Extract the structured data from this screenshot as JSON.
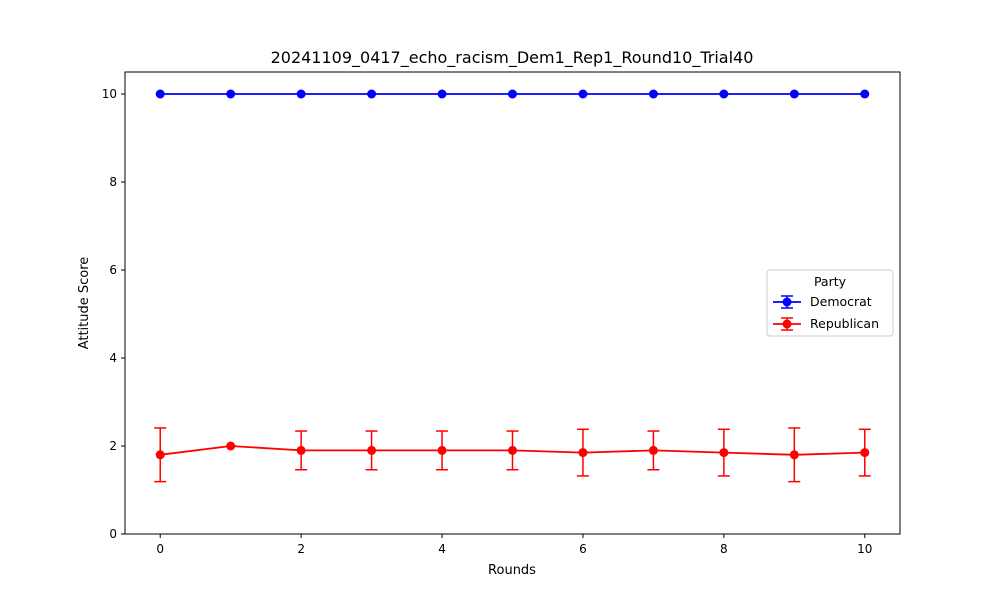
{
  "chart_data": {
    "type": "line",
    "title": "20241109_0417_echo_racism_Dem1_Rep1_Round10_Trial40",
    "xlabel": "Rounds",
    "ylabel": "Attitude Score",
    "x": [
      0,
      1,
      2,
      3,
      4,
      5,
      6,
      7,
      8,
      9,
      10
    ],
    "xlim": [
      -0.5,
      10.5
    ],
    "ylim": [
      0,
      10.5
    ],
    "xticks": [
      0,
      2,
      4,
      6,
      8,
      10
    ],
    "yticks": [
      0,
      2,
      4,
      6,
      8,
      10
    ],
    "grid": false,
    "legend": {
      "title": "Party",
      "placement": "center-right"
    },
    "series": [
      {
        "name": "Democrat",
        "color": "#0000ff",
        "values": [
          10,
          10,
          10,
          10,
          10,
          10,
          10,
          10,
          10,
          10,
          10
        ],
        "errors": [
          0,
          0,
          0,
          0,
          0,
          0,
          0,
          0,
          0,
          0,
          0
        ]
      },
      {
        "name": "Republican",
        "color": "#ff0000",
        "values": [
          1.8,
          2.0,
          1.9,
          1.9,
          1.9,
          1.9,
          1.85,
          1.9,
          1.85,
          1.8,
          1.85
        ],
        "errors": [
          0.61,
          0,
          0.44,
          0.44,
          0.44,
          0.44,
          0.53,
          0.44,
          0.53,
          0.61,
          0.53
        ]
      }
    ]
  }
}
